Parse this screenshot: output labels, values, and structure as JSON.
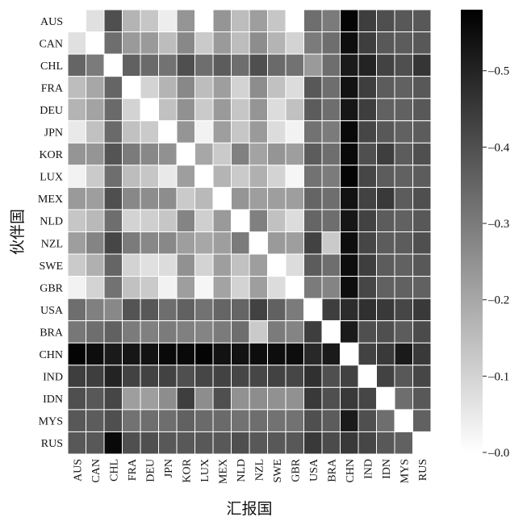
{
  "chart_data": {
    "type": "heatmap",
    "title": "",
    "xlabel": "汇报国",
    "ylabel": "伙伴国",
    "x_categories": [
      "AUS",
      "CAN",
      "CHL",
      "FRA",
      "DEU",
      "JPN",
      "KOR",
      "LUX",
      "MEX",
      "NLD",
      "NZL",
      "SWE",
      "GBR",
      "USA",
      "BRA",
      "CHN",
      "IND",
      "IDN",
      "MYS",
      "RUS"
    ],
    "y_categories": [
      "AUS",
      "CAN",
      "CHL",
      "FRA",
      "DEU",
      "JPN",
      "KOR",
      "LUX",
      "MEX",
      "NLD",
      "NZL",
      "SWE",
      "GBR",
      "USA",
      "BRA",
      "CHN",
      "IND",
      "IDN",
      "MYS",
      "RUS"
    ],
    "colormap": "white-to-black",
    "color_min_hex": "#ffffff",
    "color_max_hex": "#000000",
    "vmin": 0.0,
    "vmax": 0.58,
    "colorbar_ticks": [
      0.0,
      0.1,
      0.2,
      0.3,
      0.4,
      0.5
    ],
    "colorbar_tick_labels": [
      "0.0",
      "0.1",
      "0.2",
      "0.3",
      "0.4",
      "0.5"
    ],
    "grid": true,
    "values": [
      [
        0,
        0.07,
        0.4,
        0.17,
        0.13,
        0.04,
        0.24,
        0.0,
        0.24,
        0.15,
        0.22,
        0.13,
        0.0,
        0.33,
        0.3,
        0.57,
        0.44,
        0.4,
        0.38,
        0.38
      ],
      [
        0.07,
        0,
        0.33,
        0.23,
        0.23,
        0.15,
        0.27,
        0.12,
        0.23,
        0.15,
        0.26,
        0.17,
        0.1,
        0.3,
        0.33,
        0.55,
        0.44,
        0.38,
        0.37,
        0.38
      ],
      [
        0.35,
        0.3,
        0,
        0.36,
        0.34,
        0.32,
        0.4,
        0.33,
        0.37,
        0.33,
        0.4,
        0.34,
        0.32,
        0.23,
        0.33,
        0.52,
        0.5,
        0.43,
        0.4,
        0.46
      ],
      [
        0.15,
        0.2,
        0.35,
        0,
        0.1,
        0.17,
        0.27,
        0.15,
        0.22,
        0.1,
        0.26,
        0.14,
        0.08,
        0.38,
        0.33,
        0.54,
        0.44,
        0.37,
        0.36,
        0.38
      ],
      [
        0.17,
        0.21,
        0.34,
        0.1,
        0,
        0.14,
        0.25,
        0.12,
        0.23,
        0.13,
        0.24,
        0.08,
        0.14,
        0.37,
        0.33,
        0.53,
        0.44,
        0.36,
        0.36,
        0.38
      ],
      [
        0.05,
        0.14,
        0.34,
        0.14,
        0.12,
        0,
        0.24,
        0.03,
        0.22,
        0.13,
        0.23,
        0.08,
        0.03,
        0.32,
        0.3,
        0.56,
        0.42,
        0.38,
        0.36,
        0.37
      ],
      [
        0.24,
        0.24,
        0.39,
        0.3,
        0.27,
        0.25,
        0,
        0.2,
        0.12,
        0.29,
        0.21,
        0.24,
        0.22,
        0.37,
        0.33,
        0.56,
        0.4,
        0.44,
        0.37,
        0.4
      ],
      [
        0.03,
        0.12,
        0.33,
        0.15,
        0.13,
        0.05,
        0.22,
        0,
        0.17,
        0.12,
        0.18,
        0.1,
        0.02,
        0.32,
        0.3,
        0.57,
        0.42,
        0.37,
        0.36,
        0.37
      ],
      [
        0.23,
        0.22,
        0.4,
        0.27,
        0.26,
        0.26,
        0.12,
        0.16,
        0,
        0.24,
        0.22,
        0.22,
        0.22,
        0.35,
        0.33,
        0.54,
        0.43,
        0.45,
        0.37,
        0.4
      ],
      [
        0.13,
        0.16,
        0.33,
        0.1,
        0.11,
        0.13,
        0.28,
        0.11,
        0.23,
        0,
        0.29,
        0.14,
        0.08,
        0.35,
        0.33,
        0.53,
        0.43,
        0.37,
        0.36,
        0.38
      ],
      [
        0.22,
        0.28,
        0.42,
        0.3,
        0.27,
        0.27,
        0.22,
        0.2,
        0.22,
        0.3,
        0,
        0.23,
        0.22,
        0.43,
        0.12,
        0.55,
        0.42,
        0.37,
        0.37,
        0.4
      ],
      [
        0.12,
        0.18,
        0.35,
        0.1,
        0.07,
        0.08,
        0.25,
        0.1,
        0.22,
        0.14,
        0.22,
        0,
        0.08,
        0.37,
        0.33,
        0.55,
        0.44,
        0.37,
        0.36,
        0.38
      ],
      [
        0.03,
        0.1,
        0.32,
        0.14,
        0.12,
        0.03,
        0.22,
        0.02,
        0.21,
        0.1,
        0.22,
        0.08,
        0,
        0.3,
        0.28,
        0.55,
        0.42,
        0.36,
        0.36,
        0.36
      ],
      [
        0.33,
        0.29,
        0.27,
        0.39,
        0.38,
        0.33,
        0.36,
        0.32,
        0.35,
        0.35,
        0.43,
        0.36,
        0.3,
        0,
        0.44,
        0.48,
        0.47,
        0.45,
        0.42,
        0.45
      ],
      [
        0.31,
        0.33,
        0.36,
        0.3,
        0.29,
        0.3,
        0.29,
        0.28,
        0.3,
        0.33,
        0.12,
        0.3,
        0.28,
        0.44,
        0,
        0.52,
        0.4,
        0.4,
        0.37,
        0.41
      ],
      [
        0.57,
        0.55,
        0.52,
        0.53,
        0.54,
        0.56,
        0.56,
        0.57,
        0.54,
        0.54,
        0.55,
        0.55,
        0.55,
        0.49,
        0.52,
        0,
        0.43,
        0.45,
        0.52,
        0.45
      ],
      [
        0.44,
        0.44,
        0.5,
        0.43,
        0.43,
        0.43,
        0.4,
        0.42,
        0.43,
        0.42,
        0.42,
        0.43,
        0.42,
        0.47,
        0.4,
        0.43,
        0,
        0.43,
        0.38,
        0.42
      ],
      [
        0.4,
        0.38,
        0.42,
        0.22,
        0.22,
        0.26,
        0.44,
        0.26,
        0.4,
        0.25,
        0.26,
        0.25,
        0.25,
        0.45,
        0.4,
        0.45,
        0.42,
        0,
        0.33,
        0.38
      ],
      [
        0.38,
        0.37,
        0.4,
        0.32,
        0.33,
        0.33,
        0.36,
        0.34,
        0.34,
        0.32,
        0.33,
        0.32,
        0.32,
        0.4,
        0.37,
        0.52,
        0.4,
        0.33,
        0,
        0.36
      ],
      [
        0.38,
        0.38,
        0.56,
        0.4,
        0.4,
        0.38,
        0.38,
        0.38,
        0.38,
        0.4,
        0.38,
        0.38,
        0.38,
        0.45,
        0.41,
        0.45,
        0.42,
        0.38,
        0.36,
        0
      ]
    ]
  }
}
